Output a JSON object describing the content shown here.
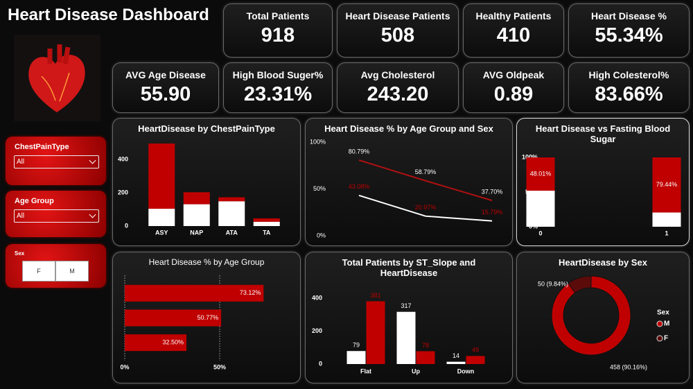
{
  "header": {
    "title": "Heart Disease Dashboard"
  },
  "kpis": [
    {
      "label": "Total Patients",
      "value": "918"
    },
    {
      "label": "Heart Disease Patients",
      "value": "508"
    },
    {
      "label": "Healthy Patients",
      "value": "410"
    },
    {
      "label": "Heart Disease %",
      "value": "55.34%"
    },
    {
      "label": "AVG Age Disease",
      "value": "55.90"
    },
    {
      "label": "High Blood Suger%",
      "value": "23.31%"
    },
    {
      "label": "Avg Cholesterol",
      "value": "243.20"
    },
    {
      "label": "AVG Oldpeak",
      "value": "0.89"
    },
    {
      "label": "High Colesterol%",
      "value": "83.66%"
    }
  ],
  "filters": [
    {
      "label": "ChestPainType",
      "value": "All"
    },
    {
      "label": "Age Group",
      "value": "All"
    },
    {
      "label": "Sex",
      "options": [
        "F",
        "M"
      ]
    }
  ],
  "chart_data": [
    {
      "type": "bar",
      "stacked": true,
      "title": "HeartDisease by ChestPainType",
      "categories": [
        "ASY",
        "NAP",
        "ATA",
        "TA"
      ],
      "series": [
        {
          "color": "#ffffff",
          "values": [
            104,
            131,
            149,
            26
          ]
        },
        {
          "color": "#c00000",
          "values": [
            392,
            72,
            24,
            20
          ]
        }
      ],
      "ylim": [
        0,
        520
      ],
      "yticks": [
        0,
        200,
        400
      ]
    },
    {
      "type": "line",
      "title": "Heart Disease % by Age Group and Sex",
      "series": [
        {
          "color": "#b01010",
          "label_color": "#ffffff",
          "values": [
            80.79,
            58.79,
            37.7
          ],
          "value_labels": [
            "80.79%",
            "58.79%",
            "37.70%"
          ]
        },
        {
          "color": "#ffffff",
          "label_color": "#c00000",
          "values": [
            43.08,
            20.97,
            15.79
          ],
          "value_labels": [
            "43.08%",
            "20.97%",
            "15.79%"
          ]
        }
      ],
      "ylim": [
        0,
        100
      ],
      "yticks": [
        {
          "value": 0,
          "label": "0%"
        },
        {
          "value": 50,
          "label": "50%"
        },
        {
          "value": 100,
          "label": "100%"
        }
      ]
    },
    {
      "type": "bar",
      "stacked": true,
      "title": "Heart Disease vs Fasting Blood Sugar",
      "categories": [
        "0",
        "1"
      ],
      "series": [
        {
          "color": "#ffffff",
          "values": [
            51.99,
            20.56
          ]
        },
        {
          "color": "#c00000",
          "label_color": "#ffffff",
          "values": [
            48.01,
            79.44
          ],
          "value_labels": [
            "48.01%",
            "79.44%"
          ]
        }
      ],
      "ylim": [
        0,
        100
      ],
      "yticks": [
        {
          "value": 0,
          "label": "0%"
        },
        {
          "value": 50,
          "label": "50%"
        },
        {
          "value": 100,
          "label": "100%"
        }
      ]
    },
    {
      "type": "bar",
      "orientation": "horizontal",
      "title": "Heart Disease % by Age Group",
      "series": [
        {
          "color": "#c00000",
          "label_color": "#ffffff",
          "values": [
            73.12,
            50.77,
            32.5
          ],
          "value_labels": [
            "73.12%",
            "50.77%",
            "32.50%"
          ]
        }
      ],
      "xlim": [
        0,
        100
      ],
      "xticks": [
        {
          "value": 0,
          "label": "0%"
        },
        {
          "value": 50,
          "label": "50%"
        }
      ],
      "grid": true
    },
    {
      "type": "bar",
      "title": "Total Patients by ST_Slope and HeartDisease",
      "categories": [
        "Flat",
        "Up",
        "Down"
      ],
      "series": [
        {
          "color": "#ffffff",
          "label_color": "#ffffff",
          "values": [
            79,
            317,
            14
          ]
        },
        {
          "color": "#c00000",
          "label_color": "#c00000",
          "values": [
            381,
            78,
            49
          ]
        }
      ],
      "ylim": [
        0,
        420
      ],
      "yticks": [
        0,
        200,
        400
      ]
    },
    {
      "type": "pie",
      "donut": true,
      "title": "HeartDisease by Sex",
      "categories": [
        "M",
        "F"
      ],
      "values": [
        458,
        50
      ],
      "value_labels": [
        "458 (90.16%)",
        "50 (9.84%)"
      ],
      "colors": [
        "#c00000",
        "#5c0b0b"
      ],
      "legend_title": "Sex"
    }
  ]
}
